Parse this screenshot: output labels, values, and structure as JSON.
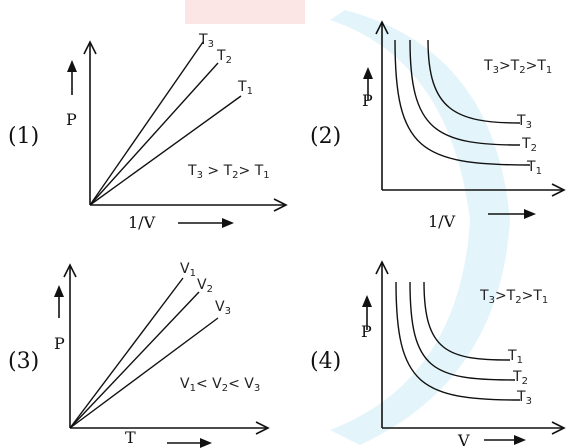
{
  "graphs": [
    {
      "number": "(1)",
      "x_label": "1/V",
      "y_label": "P",
      "curve_labels": [
        {
          "base": "T",
          "sub": "3"
        },
        {
          "base": "T",
          "sub": "2"
        },
        {
          "base": "T",
          "sub": "1"
        }
      ],
      "relation": [
        {
          "base": "T",
          "sub": "3"
        },
        {
          "text": " > "
        },
        {
          "base": "T",
          "sub": "2"
        },
        {
          "text": "> "
        },
        {
          "base": "T",
          "sub": "1"
        }
      ]
    },
    {
      "number": "(2)",
      "x_label": "1/V",
      "y_label": "P",
      "curve_labels": [
        {
          "base": "T",
          "sub": "3"
        },
        {
          "base": "T",
          "sub": "2"
        },
        {
          "base": "T",
          "sub": "1"
        }
      ],
      "relation": [
        {
          "base": "T",
          "sub": "3"
        },
        {
          "text": ">"
        },
        {
          "base": "T",
          "sub": "2"
        },
        {
          "text": ">"
        },
        {
          "base": "T",
          "sub": "1"
        }
      ]
    },
    {
      "number": "(3)",
      "x_label": "T",
      "y_label": "P",
      "curve_labels": [
        {
          "base": "V",
          "sub": "1"
        },
        {
          "base": "V",
          "sub": "2"
        },
        {
          "base": "V",
          "sub": "3"
        }
      ],
      "relation": [
        {
          "base": "V",
          "sub": "1"
        },
        {
          "text": "< "
        },
        {
          "base": "V",
          "sub": "2"
        },
        {
          "text": "< "
        },
        {
          "base": "V",
          "sub": "3"
        }
      ]
    },
    {
      "number": "(4)",
      "x_label": "V",
      "y_label": "P",
      "curve_labels": [
        {
          "base": "T",
          "sub": "1"
        },
        {
          "base": "T",
          "sub": "2"
        },
        {
          "base": "T",
          "sub": "3"
        }
      ],
      "relation": [
        {
          "base": "T",
          "sub": "3"
        },
        {
          "text": ">"
        },
        {
          "base": "T",
          "sub": "2"
        },
        {
          "text": ">"
        },
        {
          "base": "T",
          "sub": "1"
        }
      ]
    }
  ]
}
